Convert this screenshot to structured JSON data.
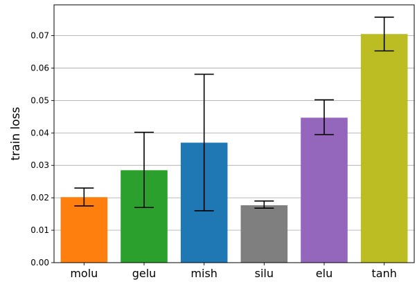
{
  "chart_data": {
    "type": "bar",
    "title": "",
    "xlabel": "",
    "ylabel": "train loss",
    "ylim": [
      0,
      0.0795
    ],
    "yticks": [
      0.0,
      0.01,
      0.02,
      0.03,
      0.04,
      0.05,
      0.06,
      0.07
    ],
    "ytick_labels": [
      "0.00",
      "0.01",
      "0.02",
      "0.03",
      "0.04",
      "0.05",
      "0.06",
      "0.07"
    ],
    "grid": "horizontal",
    "categories": [
      "molu",
      "gelu",
      "mish",
      "silu",
      "elu",
      "tanh"
    ],
    "values": [
      0.0202,
      0.0285,
      0.037,
      0.0177,
      0.0447,
      0.0705
    ],
    "error_low": [
      0.0175,
      0.017,
      0.016,
      0.0168,
      0.0395,
      0.0653
    ],
    "error_high": [
      0.023,
      0.0402,
      0.0581,
      0.019,
      0.0502,
      0.0757
    ],
    "colors": [
      "#ff7f0e",
      "#2ca02c",
      "#1f77b4",
      "#7f7f7f",
      "#9467bd",
      "#bcbd22"
    ]
  }
}
